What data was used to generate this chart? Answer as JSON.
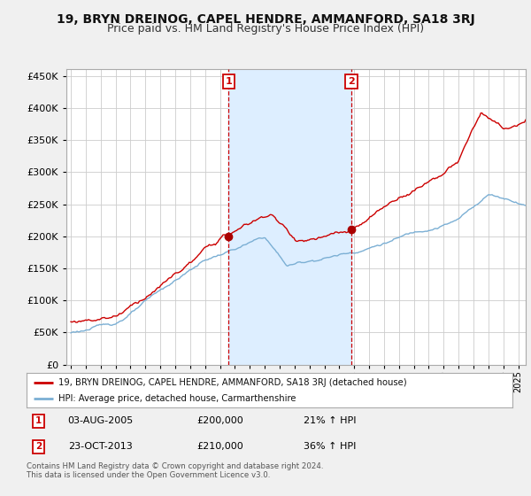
{
  "title": "19, BRYN DREINOG, CAPEL HENDRE, AMMANFORD, SA18 3RJ",
  "subtitle": "Price paid vs. HM Land Registry's House Price Index (HPI)",
  "ylabel_ticks": [
    "£0",
    "£50K",
    "£100K",
    "£150K",
    "£200K",
    "£250K",
    "£300K",
    "£350K",
    "£400K",
    "£450K"
  ],
  "ytick_values": [
    0,
    50000,
    100000,
    150000,
    200000,
    250000,
    300000,
    350000,
    400000,
    450000
  ],
  "ylim": [
    0,
    460000
  ],
  "xlim_start": 1994.7,
  "xlim_end": 2025.5,
  "background_color": "#f0f0f0",
  "plot_bg_color": "#ffffff",
  "grid_color": "#cccccc",
  "sale1_x": 2005.58,
  "sale1_y": 200000,
  "sale1_label": "1",
  "sale2_x": 2013.81,
  "sale2_y": 210000,
  "sale2_label": "2",
  "sale_marker_color": "#aa0000",
  "sale_line_color": "#cc0000",
  "hpi_line_color": "#7bafd4",
  "shade_color": "#ddeeff",
  "legend_entry1": "19, BRYN DREINOG, CAPEL HENDRE, AMMANFORD, SA18 3RJ (detached house)",
  "legend_entry2": "HPI: Average price, detached house, Carmarthenshire",
  "annotation1_date": "03-AUG-2005",
  "annotation1_price": "£200,000",
  "annotation1_hpi": "21% ↑ HPI",
  "annotation2_date": "23-OCT-2013",
  "annotation2_price": "£210,000",
  "annotation2_hpi": "36% ↑ HPI",
  "footer": "Contains HM Land Registry data © Crown copyright and database right 2024.\nThis data is licensed under the Open Government Licence v3.0.",
  "title_fontsize": 10,
  "subtitle_fontsize": 9
}
